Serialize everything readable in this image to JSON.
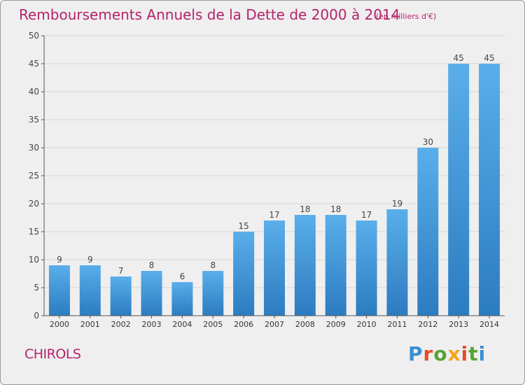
{
  "title": "Remboursements Annuels de la Dette de 2000 à 2014",
  "unit": "(en milliers d'€)",
  "commune": "CHIROLS",
  "logo": "Proxiti",
  "colors": {
    "title": "#b5226b",
    "bar_top": "#5aaeea",
    "bar_bottom": "#2c7cc0",
    "background": "#efefef",
    "grid": "#d4d4d4"
  },
  "chart_data": {
    "type": "bar",
    "title": "Remboursements Annuels de la Dette de 2000 à 2014",
    "xlabel": "",
    "ylabel": "",
    "categories": [
      "2000",
      "2001",
      "2002",
      "2003",
      "2004",
      "2005",
      "2006",
      "2007",
      "2008",
      "2009",
      "2010",
      "2011",
      "2012",
      "2013",
      "2014"
    ],
    "values": [
      9,
      9,
      7,
      8,
      6,
      8,
      15,
      17,
      18,
      18,
      17,
      19,
      30,
      45,
      45
    ],
    "ylim": [
      0,
      50
    ],
    "yticks": [
      0,
      5,
      10,
      15,
      20,
      25,
      30,
      35,
      40,
      45,
      50
    ],
    "grid": true,
    "data_labels": true
  }
}
